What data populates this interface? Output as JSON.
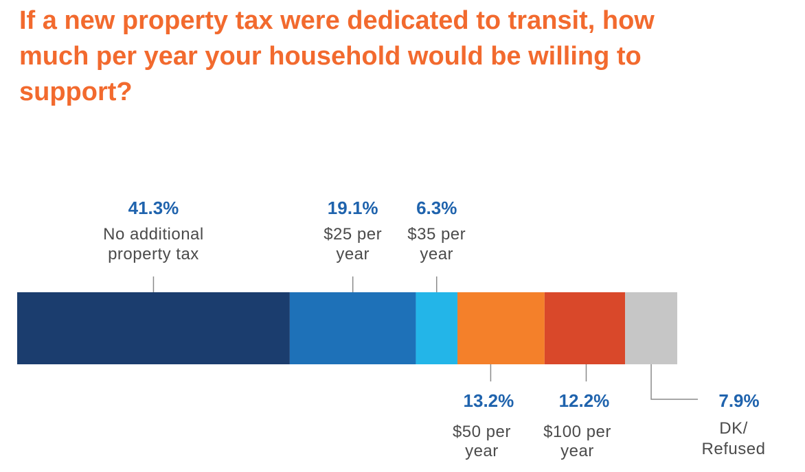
{
  "chart_data": {
    "type": "bar",
    "orientation": "horizontal-stacked",
    "title": "If a new property tax were dedicated to transit, how much per year your household would be willing to support?",
    "categories": [
      "No additional property tax",
      "$25 per year",
      "$35 per year",
      "$50 per year",
      "$100 per year",
      "DK/ Refused"
    ],
    "values": [
      41.3,
      19.1,
      6.3,
      13.2,
      12.2,
      7.9
    ],
    "value_labels": [
      "41.3%",
      "19.1%",
      "6.3%",
      "13.2%",
      "12.2%",
      "7.9%"
    ],
    "label_lines": [
      [
        "No additional",
        "property tax"
      ],
      [
        "$25 per",
        "year"
      ],
      [
        "$35 per",
        "year"
      ],
      [
        "$50 per",
        "year"
      ],
      [
        "$100 per",
        "year"
      ],
      [
        "DK/",
        "Refused"
      ]
    ],
    "label_positions": [
      "above",
      "above",
      "above",
      "below",
      "below",
      "below"
    ],
    "colors": [
      "#1b3d6e",
      "#1e71b8",
      "#23b5e8",
      "#f4802a",
      "#d9482a",
      "#c6c6c6"
    ],
    "title_color": "#f26a2e",
    "value_label_color": "#1f63ad",
    "unit": "%",
    "total": 100
  }
}
